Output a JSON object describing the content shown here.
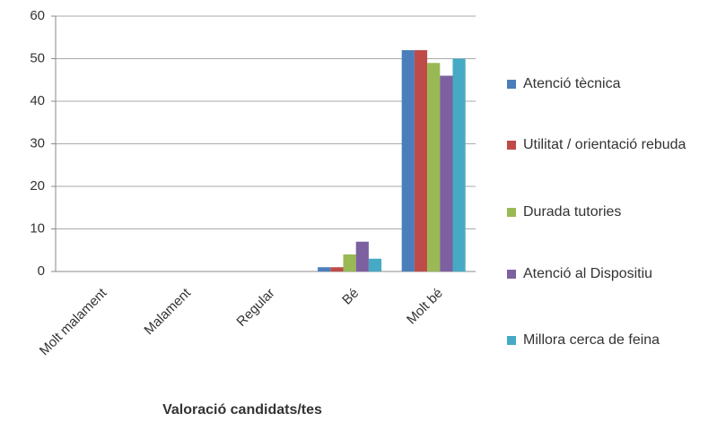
{
  "chart_data": {
    "type": "bar",
    "x_label": "Valoració candidats/tes",
    "categories": [
      "Molt malament",
      "Malament",
      "Regular",
      "Bé",
      "Molt bé"
    ],
    "series": [
      {
        "name": "Atenció tècnica",
        "color": "#4a7ebb",
        "values": [
          0,
          0,
          0,
          1,
          52
        ]
      },
      {
        "name": "Utilitat / orientació rebuda",
        "color": "#be4b48",
        "values": [
          0,
          0,
          0,
          1,
          52
        ]
      },
      {
        "name": "Durada tutories",
        "color": "#98b954",
        "values": [
          0,
          0,
          0,
          4,
          49
        ]
      },
      {
        "name": "Atenció al Dispositiu",
        "color": "#7d60a0",
        "values": [
          0,
          0,
          0,
          7,
          46
        ]
      },
      {
        "name": "Millora cerca de feina",
        "color": "#46aac5",
        "values": [
          0,
          0,
          0,
          3,
          50
        ]
      }
    ],
    "ylim": [
      0,
      60
    ],
    "yticks": [
      0,
      10,
      20,
      30,
      40,
      50,
      60
    ],
    "grid": true,
    "legend": "right"
  }
}
